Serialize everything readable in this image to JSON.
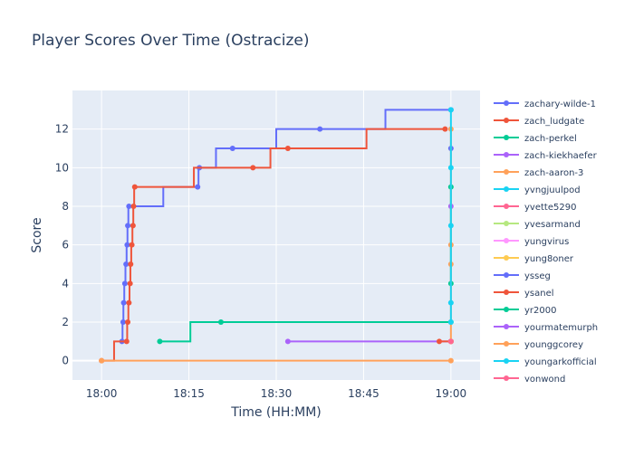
{
  "chart_data": {
    "type": "line",
    "line_shape": "step",
    "title": "Player Scores Over Time (Ostracize)",
    "xlabel": "Time (HH:MM)",
    "ylabel": "Score",
    "x_ticks": [
      "18:00",
      "18:15",
      "18:30",
      "18:45",
      "19:00"
    ],
    "x_range": [
      "17:55",
      "19:05"
    ],
    "y_ticks": [
      0,
      2,
      4,
      6,
      8,
      10,
      12
    ],
    "ylim": [
      -1,
      14
    ],
    "grid": true,
    "legend_position": "right",
    "series": [
      {
        "name": "zachary-wilde-1",
        "color": "#636efa",
        "points": [
          [
            "18:03.5",
            1
          ],
          [
            "18:03.7",
            2
          ],
          [
            "18:03.8",
            3
          ],
          [
            "18:04.0",
            4
          ],
          [
            "18:04.2",
            5
          ],
          [
            "18:04.4",
            6
          ],
          [
            "18:04.5",
            7
          ],
          [
            "18:04.7",
            8
          ],
          [
            "18:16.5",
            9
          ],
          [
            "18:16.8",
            10
          ],
          [
            "18:22.5",
            11
          ],
          [
            "18:37.5",
            12
          ],
          [
            "19:00.0",
            13
          ]
        ]
      },
      {
        "name": "zach_ludgate",
        "color": "#ef553b",
        "points": [
          [
            "18:00.0",
            0
          ],
          [
            "18:04.3",
            1
          ],
          [
            "18:04.5",
            2
          ],
          [
            "18:04.7",
            3
          ],
          [
            "18:04.9",
            4
          ],
          [
            "18:05.0",
            5
          ],
          [
            "18:05.2",
            6
          ],
          [
            "18:05.4",
            7
          ],
          [
            "18:05.5",
            8
          ],
          [
            "18:05.7",
            9
          ],
          [
            "18:26.0",
            10
          ],
          [
            "18:32.0",
            11
          ],
          [
            "18:59.0",
            12
          ]
        ]
      },
      {
        "name": "zach-perkel",
        "color": "#00cc96",
        "points": [
          [
            "18:10.0",
            1
          ],
          [
            "18:20.5",
            2
          ],
          [
            "19:00.0",
            2
          ]
        ]
      },
      {
        "name": "zach-kiekhaefer",
        "color": "#ab63fa",
        "points": [
          [
            "18:32.0",
            1
          ],
          [
            "19:00.0",
            1
          ]
        ]
      },
      {
        "name": "zach-aaron-3",
        "color": "#ffa15a",
        "points": [
          [
            "18:00.0",
            0
          ],
          [
            "19:00.0",
            0
          ]
        ]
      },
      {
        "name": "yvngjuulpod",
        "color": "#19d3f3",
        "points": [
          [
            "19:00.0",
            1
          ]
        ]
      },
      {
        "name": "yvette5290",
        "color": "#ff6692",
        "points": [
          [
            "19:00.0",
            1
          ]
        ]
      },
      {
        "name": "yvesarmand",
        "color": "#b6e880",
        "points": [
          [
            "19:00.0",
            1
          ]
        ]
      },
      {
        "name": "yungvirus",
        "color": "#ff97ff",
        "points": [
          [
            "19:00.0",
            1
          ]
        ]
      },
      {
        "name": "yung8oner",
        "color": "#fecb52",
        "points": [
          [
            "19:00.0",
            1
          ]
        ]
      },
      {
        "name": "ysseg",
        "color": "#636efa",
        "points": [
          [
            "19:00.0",
            11
          ]
        ]
      },
      {
        "name": "ysanel",
        "color": "#ef553b",
        "points": [
          [
            "18:58.0",
            1
          ],
          [
            "19:00.0",
            1
          ]
        ]
      },
      {
        "name": "yr2000",
        "color": "#00cc96",
        "points": [
          [
            "19:00.0",
            4
          ],
          [
            "19:00.0",
            9
          ]
        ]
      },
      {
        "name": "yourmatemurph",
        "color": "#ab63fa",
        "points": [
          [
            "19:00.0",
            8
          ]
        ]
      },
      {
        "name": "younggcorey",
        "color": "#ffa15a",
        "points": [
          [
            "19:00.0",
            1
          ],
          [
            "19:00.0",
            5
          ],
          [
            "19:00.0",
            6
          ],
          [
            "19:00.0",
            12
          ]
        ]
      },
      {
        "name": "youngarkofficial",
        "color": "#19d3f3",
        "points": [
          [
            "19:00.0",
            2
          ],
          [
            "19:00.0",
            3
          ],
          [
            "19:00.0",
            7
          ],
          [
            "19:00.0",
            10
          ],
          [
            "19:00.0",
            13
          ]
        ]
      },
      {
        "name": "yonwond",
        "color": "#ff6692",
        "points": [
          [
            "19:00.0",
            1
          ]
        ]
      }
    ]
  }
}
